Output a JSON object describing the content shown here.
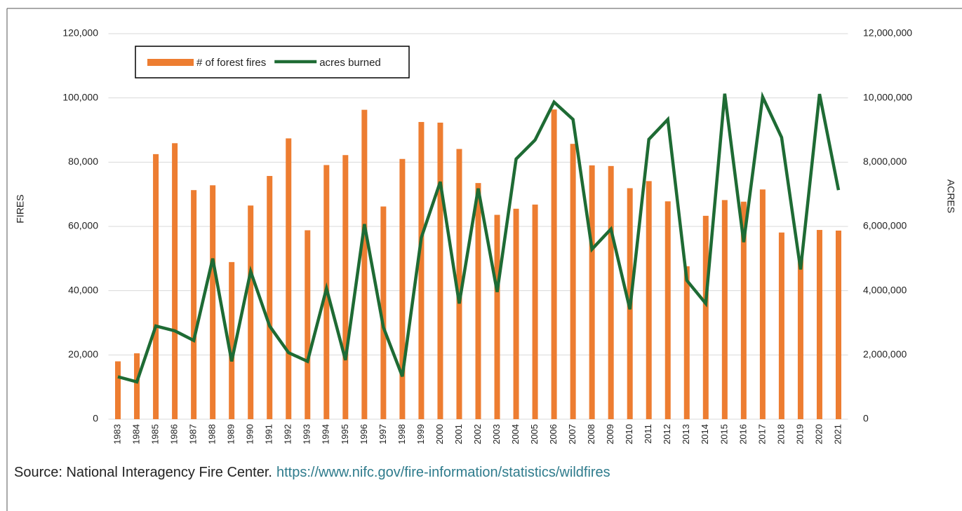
{
  "chart_data": {
    "type": "bar_line",
    "categories": [
      "1983",
      "1984",
      "1985",
      "1986",
      "1987",
      "1988",
      "1989",
      "1990",
      "1991",
      "1992",
      "1993",
      "1994",
      "1995",
      "1996",
      "1997",
      "1998",
      "1999",
      "2000",
      "2001",
      "2002",
      "2003",
      "2004",
      "2005",
      "2006",
      "2007",
      "2008",
      "2009",
      "2010",
      "2011",
      "2012",
      "2013",
      "2014",
      "2015",
      "2016",
      "2017",
      "2018",
      "2019",
      "2020",
      "2021"
    ],
    "series": [
      {
        "name": "# of forest fires",
        "type": "bar",
        "color": "#ed7d31",
        "axis": "y",
        "values": [
          18000,
          20500,
          82500,
          85900,
          71300,
          72800,
          48900,
          66500,
          75700,
          87400,
          58800,
          79100,
          82200,
          96300,
          66200,
          81000,
          92500,
          92300,
          84100,
          73500,
          63600,
          65500,
          66800,
          96400,
          85700,
          79000,
          78800,
          71900,
          74100,
          67800,
          47600,
          63300,
          68200,
          67700,
          71500,
          58100,
          50500,
          58900,
          58700
        ]
      },
      {
        "name": "acres burned",
        "type": "line",
        "color": "#1e6b34",
        "axis": "y2",
        "values": [
          1320000,
          1160000,
          2900000,
          2750000,
          2450000,
          5000000,
          1800000,
          4600000,
          2900000,
          2070000,
          1800000,
          4070000,
          1840000,
          6070000,
          2860000,
          1330000,
          5650000,
          7390000,
          3600000,
          7180000,
          3960000,
          8100000,
          8690000,
          9870000,
          9330000,
          5290000,
          5920000,
          3420000,
          8710000,
          9330000,
          4320000,
          3600000,
          10130000,
          5510000,
          10030000,
          8770000,
          4660000,
          10120000,
          7130000
        ]
      }
    ],
    "y_label": "FIRES",
    "y2_label": "ACRES",
    "ylim": [
      0,
      120000
    ],
    "yticks": [
      0,
      {
        "value": 20000,
        "label": "20,000"
      },
      {
        "value": 40000,
        "label": "40,000"
      },
      {
        "value": 60000,
        "label": "60,000"
      },
      {
        "value": 80000,
        "label": "80,000"
      },
      {
        "value": 100000,
        "label": "100,000"
      },
      {
        "value": 120000,
        "label": "120,000"
      }
    ],
    "y2lim": [
      0,
      12000000
    ],
    "y2ticks": [
      0,
      {
        "value": 2000000,
        "label": "2,000,000"
      },
      {
        "value": 4000000,
        "label": "4,000,000"
      },
      {
        "value": 6000000,
        "label": "6,000,000"
      },
      {
        "value": 8000000,
        "label": "8,000,000"
      },
      {
        "value": 10000000,
        "label": "10,000,000"
      },
      {
        "value": 12000000,
        "label": "12,000,000"
      }
    ],
    "grid": true,
    "legend": "top-left",
    "source": "Source: National Interagency Fire Center.",
    "source_url": "https://www.nifc.gov/fire-information/statistics/wildfires"
  }
}
